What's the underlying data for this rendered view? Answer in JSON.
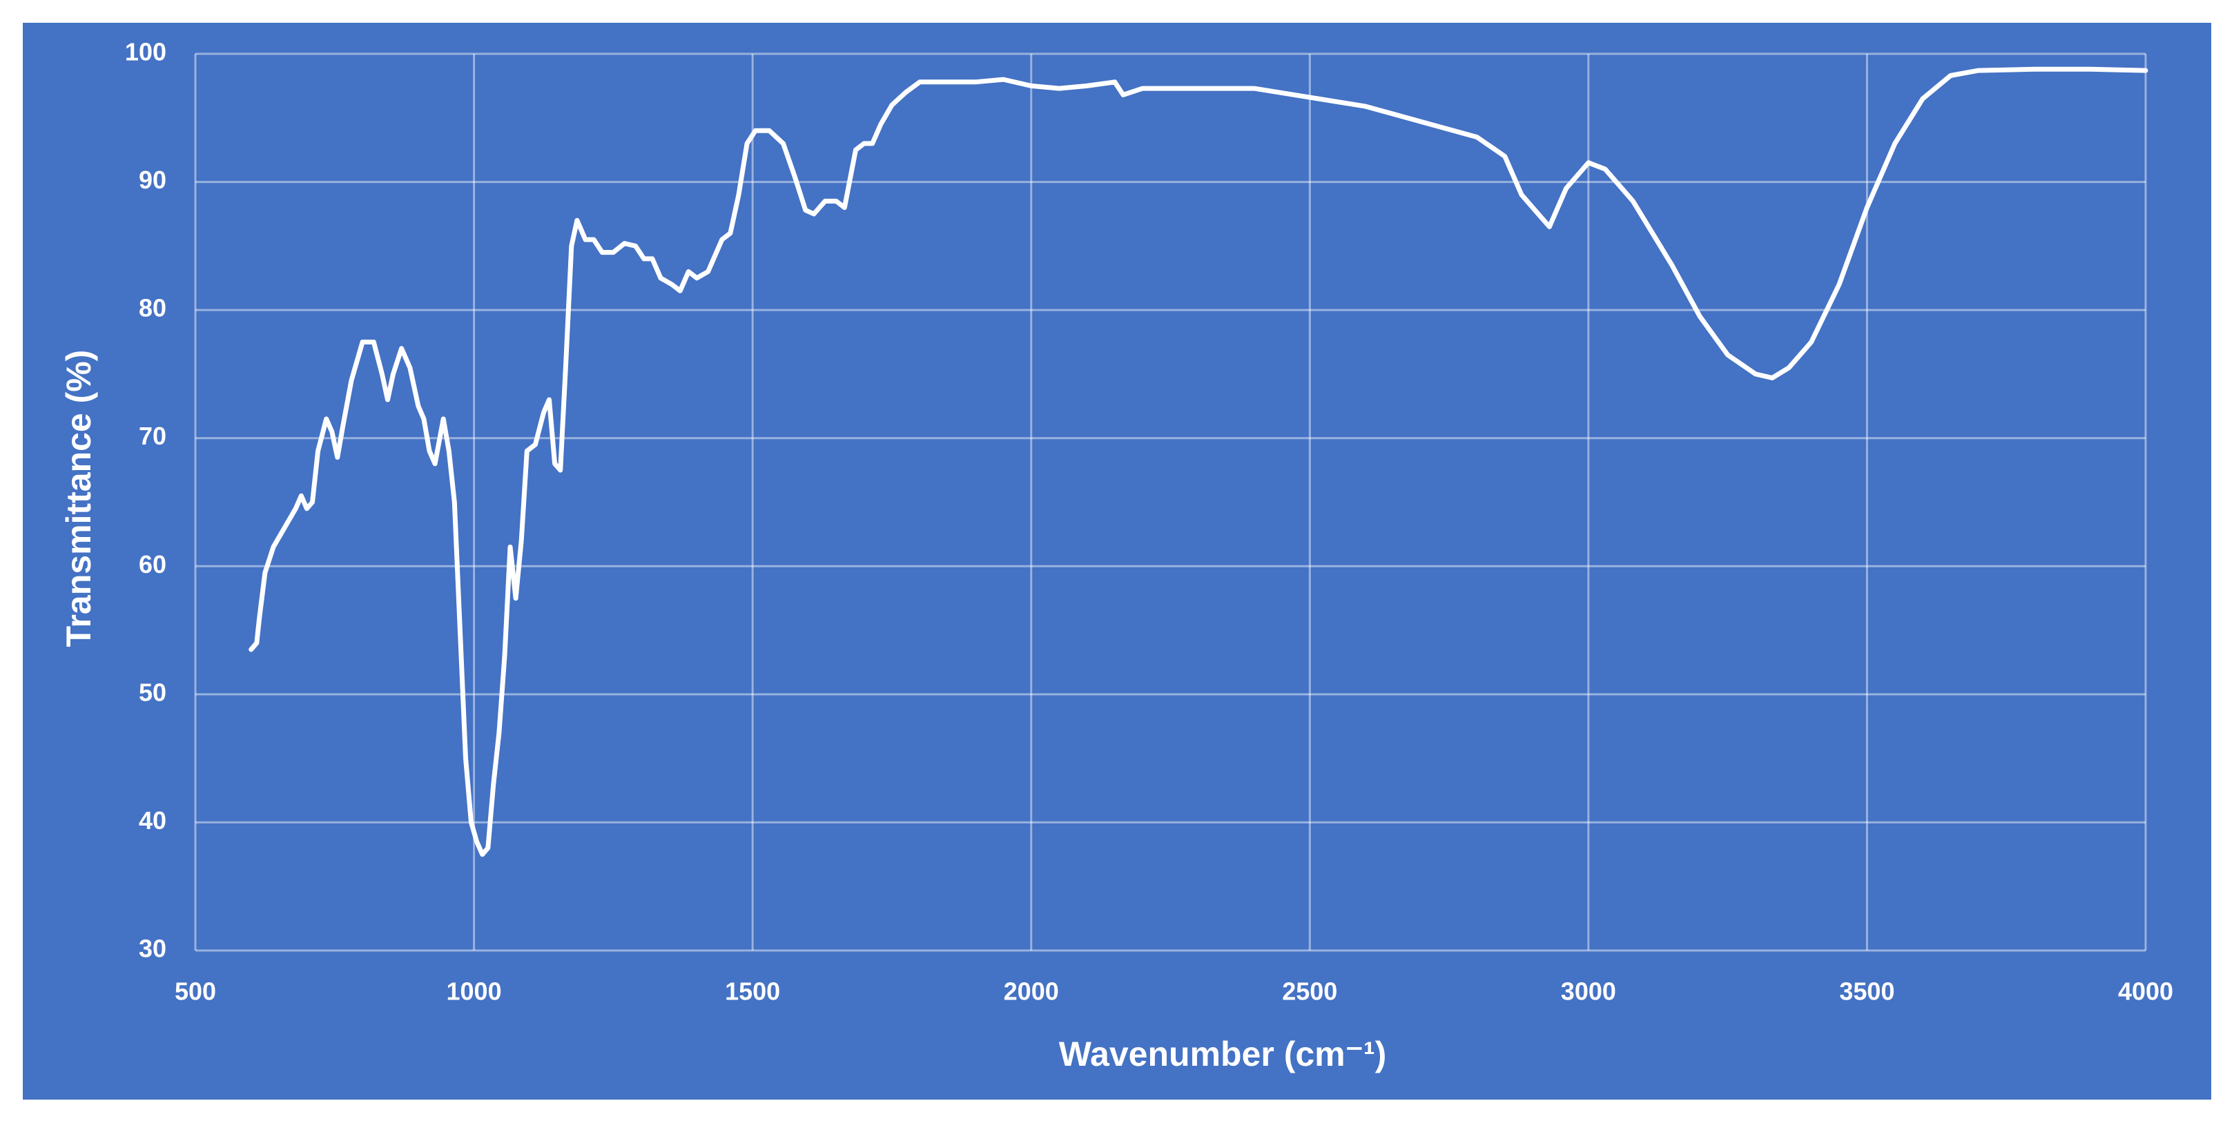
{
  "chart_data": {
    "type": "line",
    "xlabel": "Wavenumber (cm⁻¹)",
    "ylabel": "Transmittance (%)",
    "color": "#ffffff",
    "background": "#4472c4",
    "grid": true,
    "xlim": [
      500,
      4000
    ],
    "xticks": [
      500,
      1000,
      1500,
      2000,
      2500,
      3000,
      3500,
      4000
    ],
    "ylim": [
      30,
      100
    ],
    "yticks": [
      30,
      40,
      50,
      60,
      70,
      80,
      90,
      100
    ],
    "x": [
      600,
      610,
      615,
      625,
      640,
      660,
      680,
      690,
      700,
      710,
      720,
      735,
      745,
      755,
      765,
      780,
      800,
      820,
      835,
      845,
      855,
      870,
      885,
      900,
      910,
      920,
      930,
      945,
      955,
      965,
      975,
      985,
      995,
      1005,
      1015,
      1025,
      1035,
      1045,
      1055,
      1065,
      1075,
      1085,
      1095,
      1110,
      1125,
      1135,
      1145,
      1155,
      1165,
      1175,
      1185,
      1200,
      1215,
      1230,
      1250,
      1270,
      1290,
      1305,
      1320,
      1335,
      1355,
      1370,
      1385,
      1400,
      1420,
      1445,
      1460,
      1475,
      1490,
      1505,
      1530,
      1555,
      1575,
      1595,
      1610,
      1630,
      1650,
      1665,
      1685,
      1700,
      1715,
      1730,
      1750,
      1775,
      1800,
      1850,
      1900,
      1950,
      2000,
      2050,
      2100,
      2150,
      2165,
      2200,
      2300,
      2400,
      2500,
      2600,
      2700,
      2800,
      2850,
      2880,
      2900,
      2930,
      2960,
      3000,
      3030,
      3080,
      3150,
      3200,
      3250,
      3300,
      3330,
      3360,
      3400,
      3450,
      3500,
      3550,
      3600,
      3650,
      3700,
      3800,
      3900,
      4000
    ],
    "values": [
      53.5,
      54,
      56,
      59.5,
      61.5,
      63,
      64.5,
      65.5,
      64.5,
      65,
      69,
      71.5,
      70.5,
      68.5,
      71,
      74.5,
      77.5,
      77.5,
      75,
      73,
      75,
      77,
      75.5,
      72.5,
      71.5,
      69,
      68,
      71.5,
      69,
      65,
      55,
      45,
      40,
      38.5,
      37.5,
      38,
      43,
      47,
      53,
      61.5,
      57.5,
      62,
      69,
      69.5,
      72,
      73,
      68,
      67.5,
      76,
      85,
      87,
      85.5,
      85.5,
      84.5,
      84.5,
      85.2,
      85,
      84,
      84,
      82.5,
      82,
      81.5,
      83,
      82.5,
      83,
      85.5,
      86,
      89,
      93,
      94,
      94,
      93,
      90.5,
      87.8,
      87.5,
      88.5,
      88.5,
      88,
      92.5,
      93,
      93,
      94.5,
      96,
      97,
      97.8,
      97.8,
      97.8,
      98,
      97.5,
      97.3,
      97.5,
      97.8,
      96.8,
      97.3,
      97.3,
      97.3,
      96.6,
      95.9,
      94.7,
      93.5,
      92,
      89,
      88,
      86.5,
      89.5,
      91.5,
      91,
      88.5,
      83.5,
      79.5,
      76.5,
      75,
      74.7,
      75.5,
      77.5,
      82,
      88,
      93,
      96.5,
      98.3,
      98.7,
      98.8,
      98.8,
      98.7
    ]
  }
}
